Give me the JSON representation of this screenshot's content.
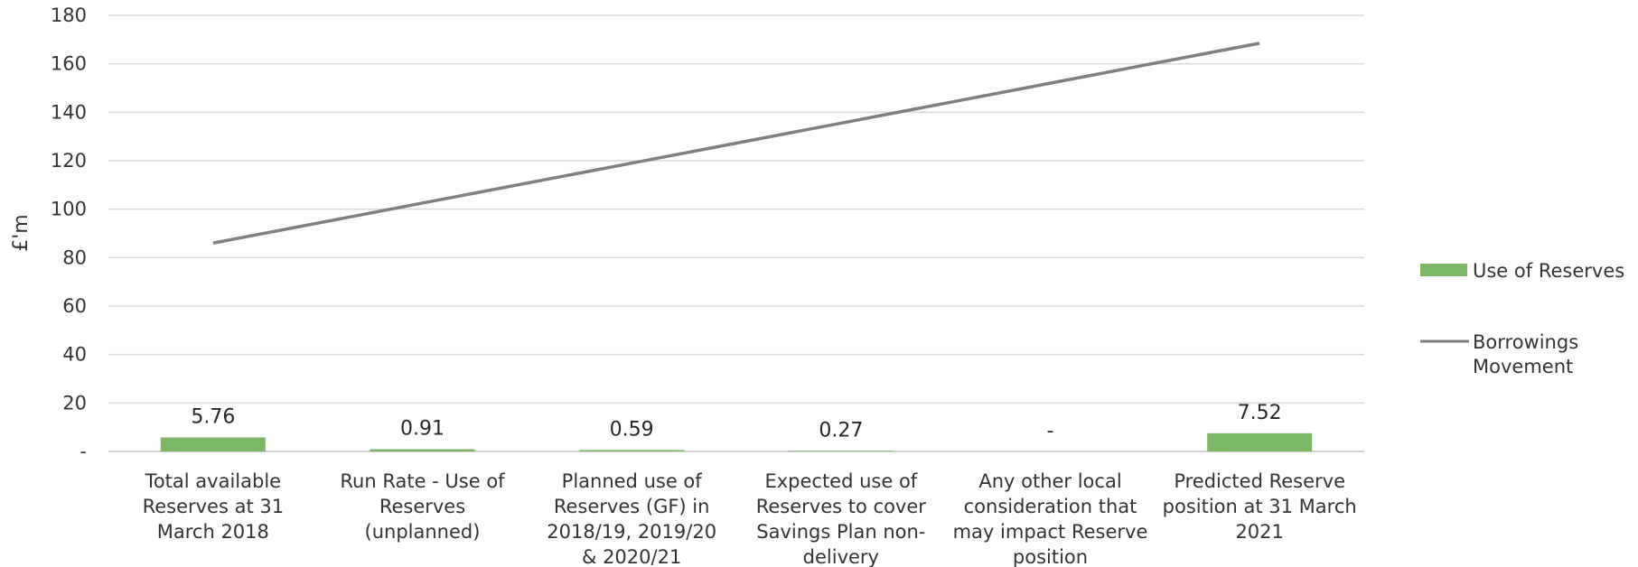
{
  "chart_data": {
    "type": "bar",
    "title": "",
    "xlabel": "",
    "ylabel": "£'m",
    "ylim": [
      0,
      180
    ],
    "yticks": [
      0,
      20,
      40,
      60,
      80,
      100,
      120,
      140,
      160,
      180
    ],
    "ytick_labels": [
      "-",
      "20",
      "40",
      "60",
      "80",
      "100",
      "120",
      "140",
      "160",
      "180"
    ],
    "grid": true,
    "legend_position": "right",
    "categories": [
      "Total available Reserves at 31 March 2018",
      "Run Rate - Use of Reserves (unplanned)",
      "Planned use of Reserves (GF) in 2018/19, 2019/20 & 2020/21",
      "Expected use of Reserves to cover Savings Plan non-delivery",
      "Any other local consideration that may impact Reserve position",
      "Predicted Reserve position at 31 March 2021"
    ],
    "category_lines": [
      [
        "Total available",
        "Reserves at 31",
        "March 2018"
      ],
      [
        "Run Rate - Use of",
        "Reserves",
        "(unplanned)"
      ],
      [
        "Planned use of",
        "Reserves (GF) in",
        "2018/19, 2019/20",
        "& 2020/21"
      ],
      [
        "Expected use of",
        "Reserves to cover",
        "Savings Plan non-",
        "delivery"
      ],
      [
        "Any other local",
        "consideration that",
        "may impact Reserve",
        "position"
      ],
      [
        "Predicted Reserve",
        "position at 31 March",
        "2021"
      ]
    ],
    "series": [
      {
        "name": "Use of Reserves",
        "type": "bar",
        "color": "#7cb863",
        "values": [
          5.76,
          0.91,
          0.59,
          0.27,
          0,
          7.52
        ],
        "data_labels": [
          "5.76",
          "0.91",
          "0.59",
          "0.27",
          "-",
          "7.52"
        ]
      },
      {
        "name": "Borrowings Movement",
        "type": "line",
        "color": "#7f7f7f",
        "values": [
          86,
          102.5,
          119,
          135.5,
          152,
          168.5
        ]
      }
    ]
  }
}
